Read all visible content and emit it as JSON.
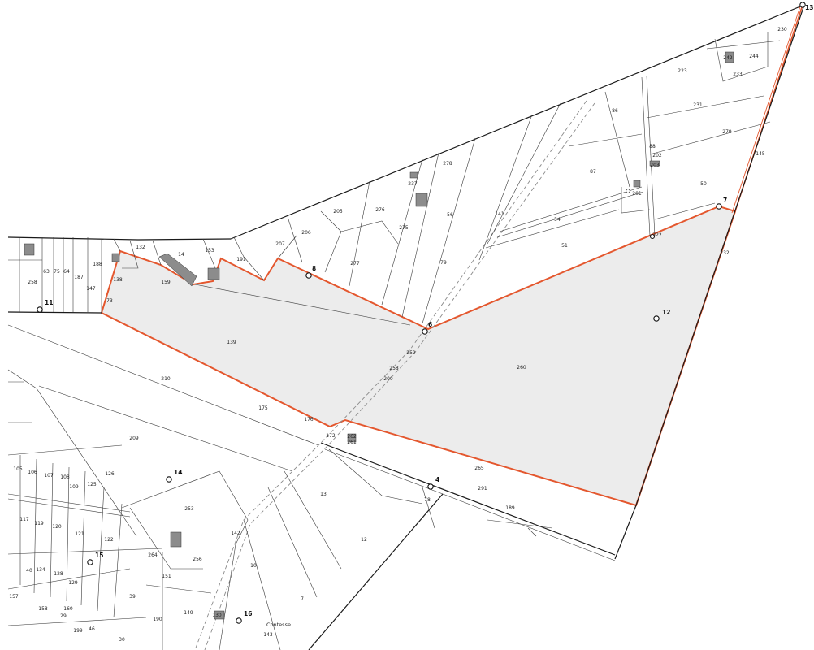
{
  "map": {
    "points": [
      "13",
      "7",
      "8",
      "11",
      "12",
      "6",
      "4",
      "14",
      "15",
      "16"
    ],
    "parcels": [
      "230",
      "242",
      "244",
      "233",
      "223",
      "231",
      "86",
      "279",
      "88",
      "145",
      "202",
      "203",
      "87",
      "201",
      "50",
      "278",
      "237",
      "205",
      "276",
      "56",
      "141",
      "54",
      "275",
      "206",
      "207",
      "51",
      "222",
      "132",
      "153",
      "14",
      "191",
      "277",
      "79",
      "232",
      "188",
      "187",
      "64",
      "75",
      "63",
      "258",
      "147",
      "138",
      "159",
      "73",
      "139",
      "259",
      "258",
      "200",
      "260",
      "210",
      "175",
      "176",
      "172",
      "262",
      "261",
      "209",
      "265",
      "291",
      "126",
      "125",
      "105",
      "106",
      "107",
      "108",
      "109",
      "13",
      "78",
      "189",
      "253",
      "117",
      "119",
      "120",
      "121",
      "122",
      "142",
      "12",
      "256",
      "264",
      "10",
      "151",
      "129",
      "40",
      "134",
      "128",
      "39",
      "157",
      "7",
      "158",
      "160",
      "29",
      "149",
      "130",
      "190",
      "143",
      "199",
      "46",
      "30"
    ],
    "locality": "Contesse",
    "colors": {
      "boundary": "#e4572e",
      "area_fill": "#ececec",
      "parcel_line": "#3a3a3a",
      "road_dash": "#8a8a8a",
      "building": "#8c8c8c"
    }
  }
}
